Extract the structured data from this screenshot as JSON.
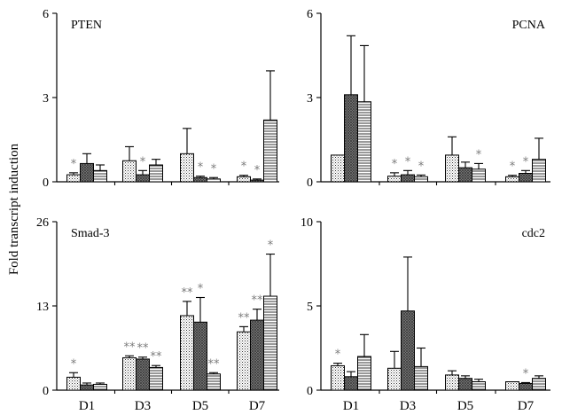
{
  "chart_data": {
    "type": "bar",
    "ylabel": "Fold transcript induction",
    "categories": [
      "D1",
      "D3",
      "D5",
      "D7"
    ],
    "fills": [
      "dotted",
      "dark-cross-hatch",
      "horizontal-lines"
    ],
    "panels": [
      {
        "title": "PTEN",
        "title_pos": "left",
        "ylim": [
          0,
          6
        ],
        "yticks": [
          "0",
          "3",
          "6"
        ],
        "values": [
          [
            0.25,
            0.65,
            0.4
          ],
          [
            0.75,
            0.25,
            0.6
          ],
          [
            1.0,
            0.15,
            0.1
          ],
          [
            0.18,
            0.06,
            2.2
          ]
        ],
        "errors": [
          [
            0.07,
            0.35,
            0.2
          ],
          [
            0.5,
            0.15,
            0.2
          ],
          [
            0.9,
            0.05,
            0.05
          ],
          [
            0.05,
            0.04,
            1.75
          ]
        ],
        "annotations": [
          [
            "*",
            "",
            ""
          ],
          [
            "",
            "*",
            ""
          ],
          [
            "",
            "*",
            "*"
          ],
          [
            "*",
            "*",
            ""
          ]
        ]
      },
      {
        "title": "PCNA",
        "title_pos": "right",
        "ylim": [
          0,
          6
        ],
        "yticks": [
          "0",
          "3",
          "6"
        ],
        "values": [
          [
            0.95,
            3.1,
            2.85
          ],
          [
            0.2,
            0.25,
            0.18
          ],
          [
            0.95,
            0.5,
            0.45
          ],
          [
            0.18,
            0.3,
            0.8
          ]
        ],
        "errors": [
          [
            0.0,
            2.1,
            2.0
          ],
          [
            0.12,
            0.15,
            0.06
          ],
          [
            0.65,
            0.2,
            0.2
          ],
          [
            0.05,
            0.1,
            0.75
          ]
        ],
        "annotations": [
          [
            "",
            "",
            ""
          ],
          [
            "*",
            "*",
            "*"
          ],
          [
            "",
            "",
            "*"
          ],
          [
            "*",
            "*",
            ""
          ]
        ]
      },
      {
        "title": "Smad-3",
        "title_pos": "left",
        "ylim": [
          0,
          26
        ],
        "yticks": [
          "0",
          "13",
          "26"
        ],
        "values": [
          [
            2.0,
            0.8,
            0.9
          ],
          [
            5.0,
            4.8,
            3.5
          ],
          [
            11.5,
            10.5,
            2.5
          ],
          [
            9.0,
            10.8,
            14.5
          ]
        ],
        "errors": [
          [
            0.7,
            0.3,
            0.2
          ],
          [
            0.3,
            0.3,
            0.3
          ],
          [
            2.2,
            3.8,
            0.2
          ],
          [
            0.8,
            1.7,
            6.5
          ]
        ],
        "annotations": [
          [
            "*",
            "",
            ""
          ],
          [
            "**",
            "**",
            "**"
          ],
          [
            "**",
            "*",
            "**"
          ],
          [
            "**",
            "**",
            "*"
          ]
        ]
      },
      {
        "title": "cdc2",
        "title_pos": "right",
        "ylim": [
          0,
          10
        ],
        "yticks": [
          "0",
          "5",
          "10"
        ],
        "values": [
          [
            1.45,
            0.8,
            2.0
          ],
          [
            1.3,
            4.7,
            1.4
          ],
          [
            0.9,
            0.7,
            0.5
          ],
          [
            0.5,
            0.4,
            0.7
          ]
        ],
        "errors": [
          [
            0.15,
            0.3,
            1.3
          ],
          [
            1.0,
            3.2,
            1.1
          ],
          [
            0.25,
            0.15,
            0.15
          ],
          [
            0.0,
            0.05,
            0.15
          ]
        ],
        "annotations": [
          [
            "*",
            "",
            ""
          ],
          [
            "",
            "",
            ""
          ],
          [
            "",
            "",
            ""
          ],
          [
            "",
            "*",
            ""
          ]
        ]
      }
    ]
  }
}
